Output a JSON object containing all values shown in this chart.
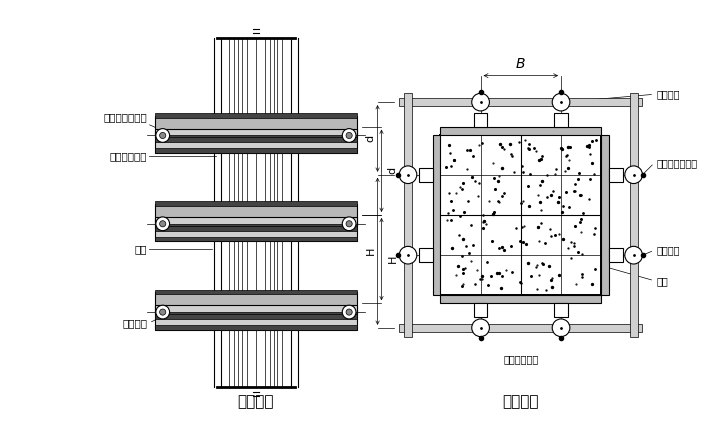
{
  "bg_color": "#ffffff",
  "line_color": "#000000",
  "title1": "柱立面图",
  "title2": "柱剖面图",
  "label_zhuzhui": "柱箍（圆钢管）",
  "label_shujing": "竖愣（方木）",
  "label_mianban": "面板",
  "label_duila": "对拉螺栓",
  "label_B": "B",
  "label_d": "d",
  "label_H": "H",
  "figsize": [
    7.07,
    4.25
  ],
  "dpi": 100
}
